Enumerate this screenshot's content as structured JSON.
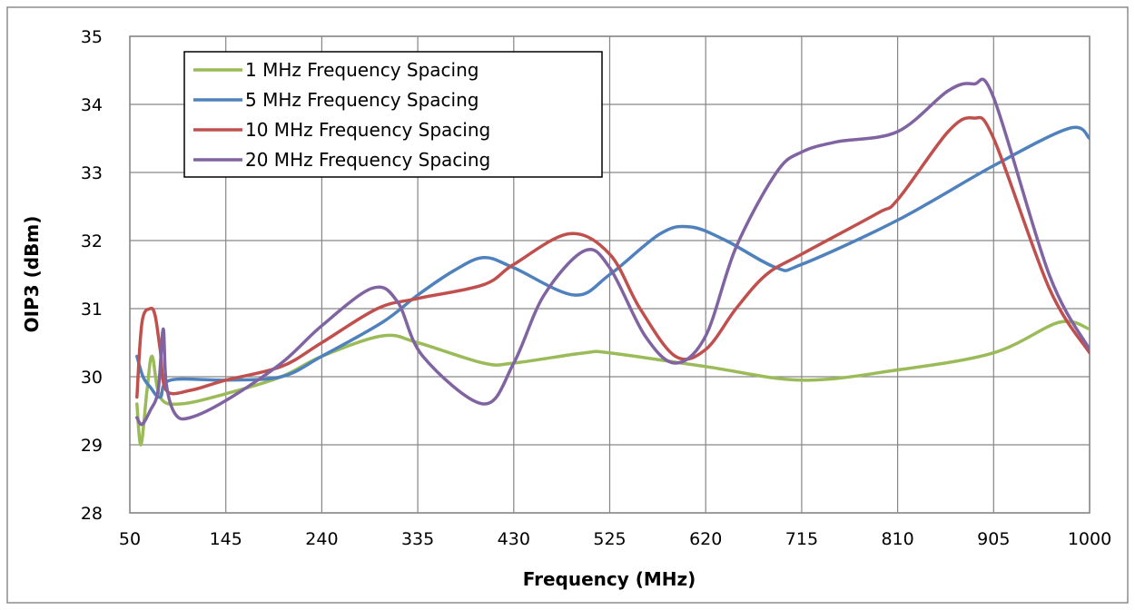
{
  "chart_data": {
    "type": "line",
    "title": "",
    "xlabel": "Frequency (MHz)",
    "ylabel": "OIP3 (dBm)",
    "xlim": [
      50,
      1000
    ],
    "ylim": [
      28,
      35
    ],
    "x_ticks": [
      "50",
      "145",
      "240",
      "335",
      "430",
      "525",
      "620",
      "715",
      "810",
      "905",
      "1000"
    ],
    "y_ticks": [
      "28",
      "29",
      "30",
      "31",
      "32",
      "33",
      "34",
      "35"
    ],
    "grid": true,
    "legend_position": "top-left",
    "series": [
      {
        "name": "1 MHz Frequency Spacing",
        "color": "#9bbb59",
        "x": [
          57,
          61,
          67,
          72,
          80,
          100,
          145,
          200,
          240,
          300,
          335,
          400,
          430,
          500,
          525,
          620,
          715,
          810,
          905,
          970,
          1000
        ],
        "y": [
          29.6,
          29.0,
          29.8,
          30.3,
          29.7,
          29.6,
          29.75,
          30.0,
          30.3,
          30.6,
          30.5,
          30.2,
          30.2,
          30.35,
          30.35,
          30.15,
          29.95,
          30.1,
          30.35,
          30.8,
          30.7
        ]
      },
      {
        "name": "5 MHz Frequency Spacing",
        "color": "#4f81bd",
        "x": [
          57,
          63,
          70,
          80,
          90,
          145,
          200,
          240,
          300,
          335,
          370,
          400,
          430,
          490,
          525,
          575,
          605,
          640,
          690,
          715,
          810,
          905,
          980,
          1000
        ],
        "y": [
          30.3,
          30.0,
          29.85,
          29.7,
          29.95,
          29.95,
          30.0,
          30.3,
          30.8,
          31.2,
          31.55,
          31.75,
          31.6,
          31.2,
          31.5,
          32.1,
          32.2,
          32.0,
          31.6,
          31.65,
          32.3,
          33.1,
          33.65,
          33.5
        ]
      },
      {
        "name": "10 MHz Frequency Spacing",
        "color": "#c0504d",
        "x": [
          57,
          62,
          70,
          75,
          80,
          86,
          110,
          145,
          200,
          240,
          295,
          335,
          400,
          430,
          485,
          525,
          555,
          590,
          620,
          650,
          680,
          715,
          790,
          810,
          860,
          885,
          905,
          960,
          1000
        ],
        "y": [
          29.7,
          30.8,
          31.0,
          30.9,
          30.4,
          29.8,
          29.8,
          29.95,
          30.15,
          30.5,
          31.0,
          31.15,
          31.35,
          31.65,
          32.1,
          31.8,
          31.0,
          30.3,
          30.4,
          31.0,
          31.5,
          31.8,
          32.4,
          32.6,
          33.6,
          33.8,
          33.5,
          31.3,
          30.35
        ]
      },
      {
        "name": "20 MHz Frequency Spacing",
        "color": "#8064a2",
        "x": [
          57,
          62,
          70,
          78,
          83,
          86,
          95,
          110,
          145,
          200,
          240,
          290,
          315,
          340,
          400,
          430,
          460,
          500,
          525,
          560,
          590,
          620,
          650,
          690,
          715,
          750,
          810,
          860,
          885,
          905,
          960,
          1000
        ],
        "y": [
          29.4,
          29.3,
          29.5,
          29.8,
          30.7,
          29.9,
          29.45,
          29.4,
          29.65,
          30.2,
          30.75,
          31.3,
          31.1,
          30.3,
          29.6,
          30.2,
          31.2,
          31.85,
          31.6,
          30.6,
          30.2,
          30.6,
          31.9,
          33.0,
          33.3,
          33.45,
          33.6,
          34.2,
          34.3,
          34.1,
          31.5,
          30.4
        ]
      }
    ]
  }
}
